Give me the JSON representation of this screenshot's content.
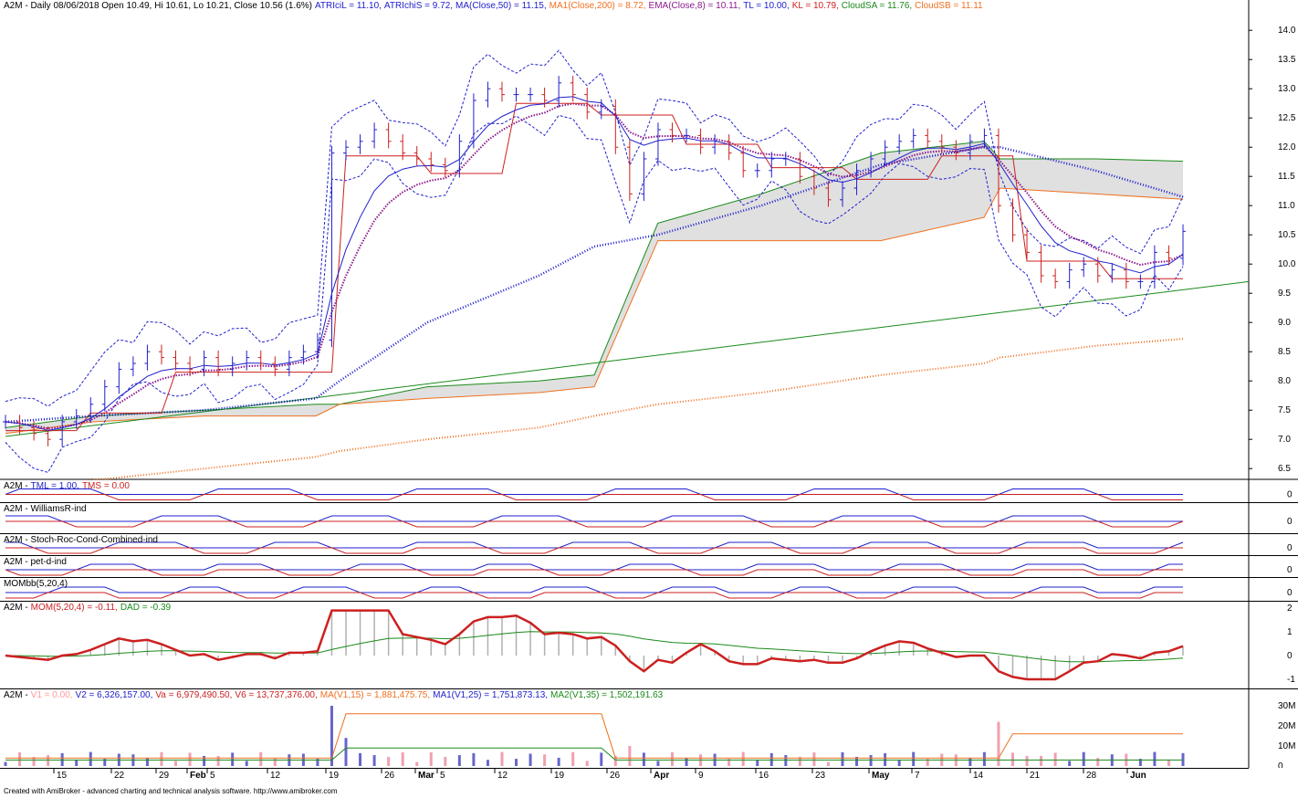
{
  "colors": {
    "up": "#2020cc",
    "down": "#cc2020",
    "grid": "#c0c0c0",
    "cloud": "#e0e0e0",
    "atr_band": "#2020cc",
    "ma50": "#1a1acc",
    "ma200": "#f07020",
    "ema8": "#8b1a8b",
    "tl": "#1a8a1a",
    "kl": "#cc2020",
    "cloud_sa": "#1a8a1a",
    "cloud_sb": "#f07020"
  },
  "main": {
    "title": [
      {
        "text": "A2M - Daily 08/06/2018 Open 10.49, Hi 10.61, Lo 10.21, Close 10.56 (1.6%)",
        "color": "#000000"
      },
      {
        "text": "ATRIciL = 11.10,",
        "color": "#2020cc"
      },
      {
        "text": "ATRIchiS = 9.72,",
        "color": "#2020cc"
      },
      {
        "text": "MA(Close,50) = 11.15,",
        "color": "#2020cc"
      },
      {
        "text": "MA1(Close,200) = 8.72,",
        "color": "#f07020"
      },
      {
        "text": "EMA(Close,8) = 10.11,",
        "color": "#8b1a8b"
      },
      {
        "text": "TL = 10.00,",
        "color": "#2020cc"
      },
      {
        "text": "KL = 10.79,",
        "color": "#cc2020"
      },
      {
        "text": "CloudSA = 11.76,",
        "color": "#1a8a1a"
      },
      {
        "text": "CloudSB = 11.11",
        "color": "#f07020"
      }
    ],
    "y_ticks": [
      "14.0",
      "13.5",
      "13.0",
      "12.5",
      "12.0",
      "11.5",
      "11.0",
      "10.5",
      "10.0",
      "9.5",
      "9.0",
      "8.5",
      "8.0",
      "7.5",
      "7.0",
      "6.5"
    ]
  },
  "indicators": [
    {
      "id": "tml",
      "title": [
        {
          "text": "A2M -",
          "color": "#000000"
        },
        {
          "text": "TML = 1.00,",
          "color": "#2020cc"
        },
        {
          "text": "TMS = 0.00",
          "color": "#cc2020"
        }
      ],
      "zero": "0"
    },
    {
      "id": "williams",
      "title": [
        {
          "text": "A2M - WilliamsR-ind",
          "color": "#000000"
        }
      ],
      "zero": "0"
    },
    {
      "id": "stochroc",
      "title": [
        {
          "text": "A2M - Stoch-Roc-Cond-Combined-ind",
          "color": "#000000"
        }
      ],
      "zero": "0"
    },
    {
      "id": "petd",
      "title": [
        {
          "text": "A2M - pet-d-ind",
          "color": "#000000"
        }
      ],
      "zero": "0"
    },
    {
      "id": "mombb",
      "title": [
        {
          "text": "MOMbb(5,20,4)",
          "color": "#000000"
        }
      ],
      "zero": "0"
    }
  ],
  "mom_pane": {
    "title": [
      {
        "text": "A2M -",
        "color": "#000000"
      },
      {
        "text": "MOM(5,20,4) = -0.11,",
        "color": "#cc2020"
      },
      {
        "text": "DAD = -0.39",
        "color": "#1a8a1a"
      }
    ],
    "y_ticks": [
      "2",
      "1",
      "0",
      "-1"
    ]
  },
  "vol_pane": {
    "title": [
      {
        "text": "A2M -",
        "color": "#000000"
      },
      {
        "text": "V1 = 0.00,",
        "color": "#ff9999"
      },
      {
        "text": "V2 = 6,326,157.00,",
        "color": "#2020cc"
      },
      {
        "text": "Va = 6,979,490.50,",
        "color": "#cc2020"
      },
      {
        "text": "V6 = 13,737,376.00,",
        "color": "#cc2020"
      },
      {
        "text": "MA(V1,15) = 1,881,475.75,",
        "color": "#f07020"
      },
      {
        "text": "MA1(V1,25) = 1,751,873.13,",
        "color": "#2020cc"
      },
      {
        "text": "MA2(V1,35) = 1,502,191.63",
        "color": "#1a8a1a"
      }
    ],
    "y_ticks": [
      "30M",
      "20M",
      "10M",
      "0"
    ]
  },
  "x_labels": [
    "15",
    "22",
    "29",
    "Feb",
    "5",
    "12",
    "19",
    "26",
    "Mar",
    "5",
    "12",
    "19",
    "26",
    "Apr",
    "9",
    "16",
    "23",
    "May",
    "7",
    "14",
    "21",
    "28",
    "Jun"
  ],
  "footer": "Created with AmiBroker - advanced charting and technical analysis software. http://www.amibroker.com",
  "chart_data": {
    "type": "line",
    "x": [
      "2018-01-11",
      "2018-01-22",
      "2018-02-05",
      "2018-02-19",
      "2018-02-22",
      "2018-03-05",
      "2018-03-19",
      "2018-03-26",
      "2018-04-03",
      "2018-04-16",
      "2018-05-01",
      "2018-05-14",
      "2018-05-16",
      "2018-05-28",
      "2018-06-08"
    ],
    "series": [
      {
        "name": "Close",
        "values": [
          7.3,
          7.8,
          8.2,
          8.6,
          11.9,
          12.0,
          12.9,
          12.8,
          11.2,
          11.7,
          11.6,
          12.2,
          10.3,
          9.9,
          10.56
        ]
      },
      {
        "name": "MA(Close,50)",
        "values": [
          7.3,
          7.4,
          7.5,
          7.7,
          8.0,
          9.0,
          9.8,
          10.3,
          10.5,
          11.0,
          11.7,
          12.0,
          12.0,
          11.6,
          11.15
        ]
      },
      {
        "name": "MA1(Close,200)",
        "values": [
          6.0,
          6.3,
          6.5,
          6.7,
          6.8,
          7.0,
          7.2,
          7.4,
          7.6,
          7.8,
          8.1,
          8.3,
          8.4,
          8.6,
          8.72
        ]
      },
      {
        "name": "EMA(Close,8)",
        "values": [
          7.3,
          7.6,
          8.0,
          8.4,
          9.9,
          12.0,
          12.6,
          12.8,
          11.9,
          11.8,
          11.6,
          12.0,
          11.0,
          10.0,
          10.11
        ]
      },
      {
        "name": "CloudSA",
        "values": [
          7.2,
          7.4,
          7.5,
          7.6,
          7.6,
          7.9,
          8.0,
          8.1,
          10.7,
          11.2,
          11.9,
          12.1,
          11.8,
          11.8,
          11.76
        ]
      },
      {
        "name": "CloudSB",
        "values": [
          7.1,
          7.3,
          7.4,
          7.4,
          7.6,
          7.7,
          7.8,
          7.9,
          10.4,
          10.4,
          10.4,
          10.8,
          11.3,
          11.2,
          11.11
        ]
      }
    ],
    "candles_close": [
      7.3,
      7.2,
      7.1,
      7.0,
      7.3,
      7.4,
      7.6,
      7.9,
      8.2,
      8.3,
      8.5,
      8.4,
      8.3,
      8.2,
      8.4,
      8.2,
      8.3,
      8.4,
      8.3,
      8.2,
      8.4,
      8.5,
      8.7,
      11.9,
      12.0,
      12.1,
      12.3,
      12.1,
      11.9,
      11.8,
      11.7,
      11.6,
      12.1,
      12.8,
      13.0,
      12.9,
      12.9,
      12.9,
      12.8,
      13.1,
      12.9,
      12.6,
      12.7,
      12.0,
      11.2,
      11.8,
      12.3,
      12.2,
      12.2,
      12.0,
      12.1,
      11.9,
      11.6,
      11.6,
      11.8,
      11.8,
      11.5,
      11.3,
      11.1,
      11.3,
      11.6,
      11.8,
      12.0,
      12.1,
      12.2,
      12.1,
      12.0,
      11.9,
      12.1,
      12.2,
      11.0,
      10.5,
      10.2,
      9.8,
      9.7,
      9.9,
      10.0,
      9.8,
      9.9,
      9.7,
      9.7,
      10.2,
      10.1,
      10.56
    ],
    "ylim": [
      6.3,
      14.3
    ]
  }
}
